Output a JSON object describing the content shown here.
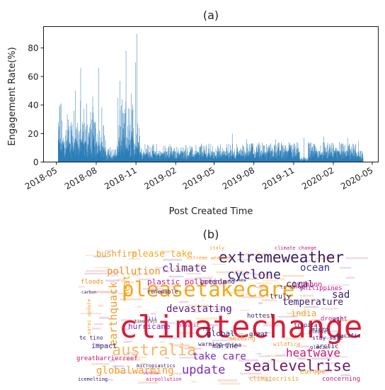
{
  "chart_data": [
    {
      "type": "bar",
      "title": "(a)",
      "xlabel": "Post Created Time",
      "ylabel": "Engagement Rate(%)",
      "ylim": [
        0,
        95
      ],
      "xlim": [
        "2018-04-01",
        "2020-05-15"
      ],
      "yticks": [
        0,
        20,
        40,
        60,
        80
      ],
      "xticks": [
        {
          "date": "2018-05-01",
          "label": "2018-05"
        },
        {
          "date": "2018-08-01",
          "label": "2018-08"
        },
        {
          "date": "2018-11-01",
          "label": "2018-11"
        },
        {
          "date": "2019-02-01",
          "label": "2019-02"
        },
        {
          "date": "2019-05-01",
          "label": "2019-05"
        },
        {
          "date": "2019-08-01",
          "label": "2019-08"
        },
        {
          "date": "2019-11-01",
          "label": "2019-11"
        },
        {
          "date": "2020-02-01",
          "label": "2020-02"
        },
        {
          "date": "2020-05-01",
          "label": "2020-05"
        }
      ],
      "bar_color": "#1f77b4",
      "grid": false,
      "peaks": [
        {
          "date": "2018-05-08",
          "value": 39
        },
        {
          "date": "2018-06-14",
          "value": 50
        },
        {
          "date": "2018-06-26",
          "value": 66
        },
        {
          "date": "2018-07-10",
          "value": 41
        },
        {
          "date": "2018-07-24",
          "value": 46
        },
        {
          "date": "2018-08-07",
          "value": 66
        },
        {
          "date": "2018-09-25",
          "value": 57
        },
        {
          "date": "2018-10-09",
          "value": 78
        },
        {
          "date": "2018-10-21",
          "value": 48
        },
        {
          "date": "2018-10-31",
          "value": 70
        },
        {
          "date": "2018-11-03",
          "value": 90
        },
        {
          "date": "2018-11-28",
          "value": 12
        },
        {
          "date": "2019-01-15",
          "value": 10
        },
        {
          "date": "2019-03-20",
          "value": 12
        },
        {
          "date": "2019-06-12",
          "value": 20
        },
        {
          "date": "2019-07-15",
          "value": 16
        },
        {
          "date": "2019-09-20",
          "value": 16
        },
        {
          "date": "2019-11-25",
          "value": 17
        },
        {
          "date": "2020-01-10",
          "value": 18
        },
        {
          "date": "2020-03-05",
          "value": 17
        },
        {
          "date": "2020-03-30",
          "value": 15
        }
      ]
    },
    {
      "type": "wordcloud",
      "title": "(b)",
      "words": [
        {
          "text": "climatechange",
          "color": "#d61f3a",
          "weight": 100
        },
        {
          "text": "pleasetakecare",
          "color": "#f2a81d",
          "weight": 60
        },
        {
          "text": "extremeweather",
          "color": "#3b1d5e",
          "weight": 42
        },
        {
          "text": "australia",
          "color": "#f4b76b",
          "weight": 40
        },
        {
          "text": "sealevelrise",
          "color": "#6b1d6b",
          "weight": 34
        },
        {
          "text": "cyclone",
          "color": "#3a1f6a",
          "weight": 30
        },
        {
          "text": "update",
          "color": "#7b2ab8",
          "weight": 26
        },
        {
          "text": "earthquack",
          "color": "#f0a030",
          "weight": 26
        },
        {
          "text": "heatwave",
          "color": "#c21d6e",
          "weight": 24
        },
        {
          "text": "globalwarming",
          "color": "#f59a2a",
          "weight": 24
        },
        {
          "text": "climate",
          "color": "#5b2a8a",
          "weight": 22
        },
        {
          "text": "pollution",
          "color": "#f28a20",
          "weight": 22
        },
        {
          "text": "devastating",
          "color": "#5a1f7a",
          "weight": 20
        },
        {
          "text": "take care",
          "color": "#7b2ab8",
          "weight": 20
        },
        {
          "text": "please take",
          "color": "#f2a81d",
          "weight": 18
        },
        {
          "text": "bushfire",
          "color": "#f29a2a",
          "weight": 16
        },
        {
          "text": "ocean",
          "color": "#3b3b8a",
          "weight": 16
        },
        {
          "text": "temperature",
          "color": "#3a1f6a",
          "weight": 14
        },
        {
          "text": "plastic pollution",
          "color": "#c21d8a",
          "weight": 13
        },
        {
          "text": "hurricane",
          "color": "#7b2ab8",
          "weight": 13
        },
        {
          "text": "india",
          "color": "#f0a030",
          "weight": 13
        },
        {
          "text": "coral",
          "color": "#3b1d5e",
          "weight": 13
        },
        {
          "text": "sad",
          "color": "#3a1f6a",
          "weight": 13
        },
        {
          "text": "heat",
          "color": "#f2a81d",
          "weight": 13
        },
        {
          "text": "impact",
          "color": "#3a1f6a",
          "weight": 11
        },
        {
          "text": "global",
          "color": "#3a1f6a",
          "weight": 11
        },
        {
          "text": "truly",
          "color": "#3b1d5e",
          "weight": 11
        },
        {
          "text": "typhoon",
          "color": "#c21d8a",
          "weight": 10
        },
        {
          "text": "philippines",
          "color": "#c21d8a",
          "weight": 9
        },
        {
          "text": "drought",
          "color": "#c21d8a",
          "weight": 9
        },
        {
          "text": "arctic",
          "color": "#3b1d5e",
          "weight": 9
        },
        {
          "text": "europe",
          "color": "#f0a030",
          "weight": 10
        },
        {
          "text": "concerning",
          "color": "#c21d6e",
          "weight": 9
        },
        {
          "text": "greatbarrierreef",
          "color": "#c21d6e",
          "weight": 9
        },
        {
          "text": "climatecrisis",
          "color": "#f0a030",
          "weight": 8
        },
        {
          "text": "marine",
          "color": "#3a1f6a",
          "weight": 9
        },
        {
          "text": "greenland",
          "color": "#3a1f6a",
          "weight": 8
        },
        {
          "text": "floods",
          "color": "#f28a20",
          "weight": 8
        },
        {
          "text": "renewable",
          "color": "#3a1f6a",
          "weight": 7
        },
        {
          "text": "tropical",
          "color": "#3b1d5e",
          "weight": 7
        },
        {
          "text": "hottest",
          "color": "#3a1f6a",
          "weight": 8
        },
        {
          "text": "wildfire",
          "color": "#f0a030",
          "weight": 7
        },
        {
          "text": "melting",
          "color": "#f0a030",
          "weight": 7
        },
        {
          "text": "warming",
          "color": "#3a1f6a",
          "weight": 7
        },
        {
          "text": "china",
          "color": "#3a1f6a",
          "weight": 7
        },
        {
          "text": "great",
          "color": "#3a1f6a",
          "weight": 7
        },
        {
          "text": "micro",
          "color": "#3a1f6a",
          "weight": 6
        },
        {
          "text": "air",
          "color": "#3b1d5e",
          "weight": 7
        },
        {
          "text": "pacific",
          "color": "#3b1d5e",
          "weight": 6
        },
        {
          "text": "stay safe",
          "color": "#3a1f6a",
          "weight": 6
        },
        {
          "text": "please",
          "color": "#3a1f6a",
          "weight": 6
        },
        {
          "text": "glacier",
          "color": "#3b1d5e",
          "weight": 5
        },
        {
          "text": "tc sarai",
          "color": "#3a1f6a",
          "weight": 6
        },
        {
          "text": "tc tino",
          "color": "#3a1f6a",
          "weight": 6
        },
        {
          "text": "extreme weather",
          "color": "#f0a030",
          "weight": 6
        },
        {
          "text": "climate change",
          "color": "#c21d8a",
          "weight": 6
        },
        {
          "text": "fiji",
          "color": "#3a1f6a",
          "weight": 6
        },
        {
          "text": "italy",
          "color": "#f0a030",
          "weight": 6
        },
        {
          "text": "extreme",
          "color": "#3a1f6a",
          "weight": 5
        },
        {
          "text": "carbon",
          "color": "#3a1f6a",
          "weight": 5
        },
        {
          "text": "icemelting",
          "color": "#3a1f6a",
          "weight": 5
        },
        {
          "text": "venice",
          "color": "#c21d8a",
          "weight": 5
        },
        {
          "text": "airpollution",
          "color": "#c21d8a",
          "weight": 5
        },
        {
          "text": "micropiastics",
          "color": "#3a1f6a",
          "weight": 5
        },
        {
          "text": "reef",
          "color": "#3a1f6a",
          "weight": 6
        },
        {
          "text": "sarai update",
          "color": "#f0a030",
          "weight": 5
        },
        {
          "text": "plastic",
          "color": "#c21d8a",
          "weight": 6
        },
        {
          "text": "tino fiji",
          "color": "#3a1f6a",
          "weight": 5
        }
      ]
    }
  ]
}
